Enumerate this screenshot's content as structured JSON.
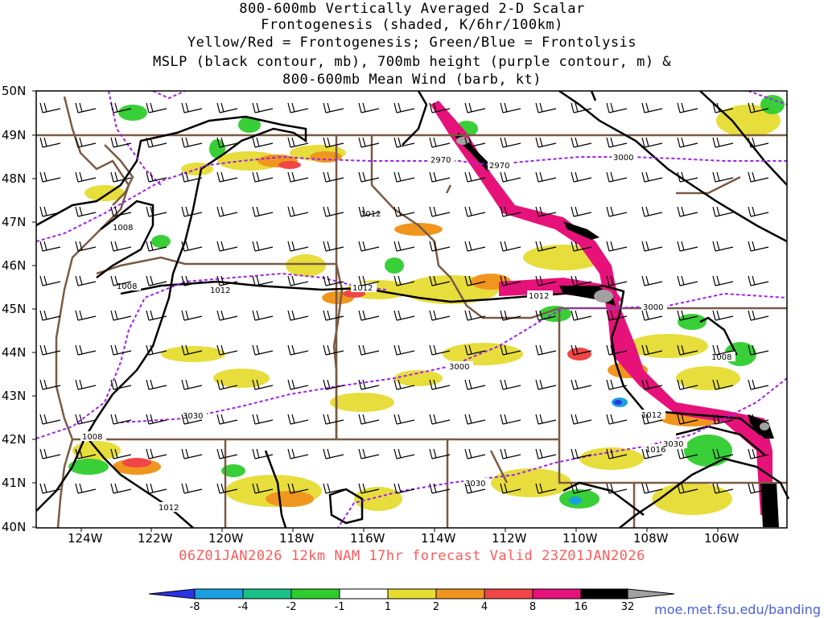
{
  "title": {
    "line1": "800-600mb Vertically Averaged 2-D Scalar",
    "line2": "Frontogenesis (shaded, K/6hr/100km)",
    "line3": "Yellow/Red = Frontogenesis;  Green/Blue = Frontolysis",
    "line4": "MSLP (black contour, mb), 700mb height (purple contour, m) &",
    "line5": "800-600mb Mean Wind (barb, kt)"
  },
  "lat_labels": [
    "50N",
    "49N",
    "48N",
    "47N",
    "46N",
    "45N",
    "44N",
    "43N",
    "42N",
    "41N",
    "40N"
  ],
  "lon_labels": [
    "124W",
    "122W",
    "120W",
    "118W",
    "116W",
    "114W",
    "112W",
    "110W",
    "108W",
    "106W"
  ],
  "run_info": "06Z01JAN2026 12km NAM 17hr forecast Valid 23Z01JAN2026",
  "colorbar": {
    "labels": [
      "-8",
      "-4",
      "-2",
      "-1",
      "1",
      "2",
      "4",
      "8",
      "16",
      "32"
    ],
    "colors": [
      "#2a34e6",
      "#1aa0e0",
      "#19c088",
      "#2ecc2e",
      "#ffffff",
      "#e6dc32",
      "#f0961e",
      "#f04646",
      "#e6127a",
      "#000000",
      "#a0a0a0"
    ]
  },
  "contour_labels": {
    "mslp": [
      "1008",
      "1008",
      "1012",
      "1012",
      "1012",
      "1012",
      "1008",
      "1012",
      "1016",
      "1008",
      "1012"
    ],
    "height": [
      "2970",
      "2970",
      "3000",
      "3000",
      "3000",
      "3030",
      "3030"
    ]
  },
  "credit": "moe.met.fsu.edu/banding"
}
